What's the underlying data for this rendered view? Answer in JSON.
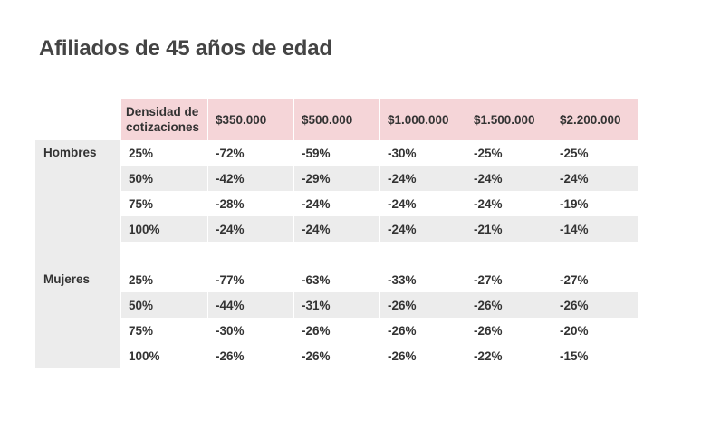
{
  "title": "Afiliados de 45 años de edad",
  "chart_data": {
    "type": "table",
    "title": "Afiliados de 45 años de edad",
    "columns": [
      "Densidad de cotizaciones",
      "$350.000",
      "$500.000",
      "$1.000.000",
      "$1.500.000",
      "$2.200.000"
    ],
    "groups": [
      {
        "name": "Hombres",
        "rows": [
          {
            "density": "25%",
            "values": [
              "-72%",
              "-59%",
              "-30%",
              "-25%",
              "-25%"
            ]
          },
          {
            "density": "50%",
            "values": [
              "-42%",
              "-29%",
              "-24%",
              "-24%",
              "-24%"
            ]
          },
          {
            "density": "75%",
            "values": [
              "-28%",
              "-24%",
              "-24%",
              "-24%",
              "-19%"
            ]
          },
          {
            "density": "100%",
            "values": [
              "-24%",
              "-24%",
              "-24%",
              "-21%",
              "-14%"
            ]
          }
        ]
      },
      {
        "name": "Mujeres",
        "rows": [
          {
            "density": "25%",
            "values": [
              "-77%",
              "-63%",
              "-33%",
              "-27%",
              "-27%"
            ]
          },
          {
            "density": "50%",
            "values": [
              "-44%",
              "-31%",
              "-26%",
              "-26%",
              "-26%"
            ]
          },
          {
            "density": "75%",
            "values": [
              "-30%",
              "-26%",
              "-26%",
              "-26%",
              "-20%"
            ]
          },
          {
            "density": "100%",
            "values": [
              "-26%",
              "-26%",
              "-26%",
              "-22%",
              "-15%"
            ]
          }
        ]
      }
    ],
    "colors": {
      "header_bg": "#f5d5d8",
      "shaded_row_bg": "#ececec",
      "group_bg": "#ececec"
    }
  }
}
